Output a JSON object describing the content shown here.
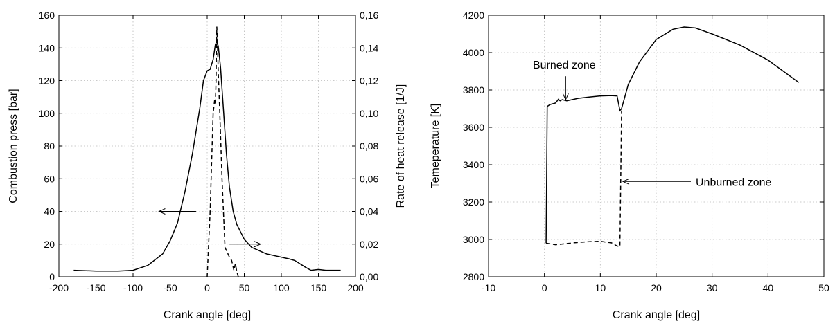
{
  "chart_data": [
    {
      "type": "line",
      "xlabel": "Crank angle [deg]",
      "ylabel": "Combustion press [bar]",
      "y2label": "Rate of heat release [1/J]",
      "xlim": [
        -200,
        200
      ],
      "ylim": [
        0,
        160
      ],
      "y2lim": [
        0,
        0.16
      ],
      "x_ticks": [
        "-200",
        "-150",
        "-100",
        "-50",
        "0",
        "50",
        "100",
        "150",
        "200"
      ],
      "y_ticks": [
        "0",
        "20",
        "40",
        "60",
        "80",
        "100",
        "120",
        "140",
        "160"
      ],
      "y2_ticks": [
        "0,00",
        "0,02",
        "0,04",
        "0,06",
        "0,08",
        "0,10",
        "0,12",
        "0,14",
        "0,16"
      ],
      "grid": true,
      "series": [
        {
          "axis": "left",
          "style": "solid",
          "x": [
            -180,
            -150,
            -120,
            -100,
            -80,
            -60,
            -50,
            -40,
            -30,
            -20,
            -10,
            -5,
            0,
            4,
            8,
            11,
            13,
            15,
            18,
            22,
            26,
            30,
            35,
            40,
            50,
            60,
            70,
            80,
            90,
            100,
            110,
            118,
            125,
            132,
            140,
            150,
            160,
            170,
            180
          ],
          "values": [
            4,
            3.5,
            3.5,
            4,
            7,
            14,
            22,
            33,
            52,
            75,
            103,
            120,
            126,
            127,
            133,
            142,
            144,
            141,
            128,
            102,
            75,
            55,
            40,
            32,
            23,
            18,
            16,
            14,
            13,
            12,
            11,
            10,
            8,
            6,
            4,
            4.5,
            4,
            4,
            4
          ]
        },
        {
          "axis": "right",
          "style": "dashed",
          "x": [
            0,
            2,
            4,
            6,
            8,
            10,
            11,
            12,
            13,
            14,
            15,
            17,
            20,
            24,
            26,
            28,
            30,
            33,
            36,
            38,
            40,
            42
          ],
          "values": [
            0,
            0.02,
            0.04,
            0.07,
            0.1,
            0.108,
            0.106,
            0.12,
            0.153,
            0.14,
            0.125,
            0.1,
            0.06,
            0.018,
            0.016,
            0.014,
            0.012,
            0.01,
            0.004,
            0.008,
            0.003,
            0
          ]
        }
      ],
      "annotations": [
        {
          "kind": "arrow",
          "from": [
            -15,
            40
          ],
          "to": [
            -65,
            40
          ],
          "meaning": "points to left axis"
        },
        {
          "kind": "arrow",
          "from": [
            30,
            0.02
          ],
          "to": [
            72,
            0.02
          ],
          "meaning": "points to right axis"
        }
      ]
    },
    {
      "type": "line",
      "xlabel": "Crank angle [deg]",
      "ylabel": "Temeperature [K]",
      "xlim": [
        -10,
        50
      ],
      "ylim": [
        2800,
        4200
      ],
      "x_ticks": [
        "-10",
        "0",
        "10",
        "20",
        "30",
        "40",
        "50"
      ],
      "y_ticks": [
        "2800",
        "3000",
        "3200",
        "3400",
        "3600",
        "3800",
        "4000",
        "4200"
      ],
      "grid": true,
      "series": [
        {
          "label_text": "Burned zone",
          "style": "solid",
          "x": [
            0.3,
            0.5,
            1,
            2,
            2.5,
            2.8,
            3.2,
            4,
            6,
            8,
            10,
            12,
            13,
            13.5,
            13.8,
            15,
            17,
            20,
            23,
            25,
            27,
            30,
            35,
            40,
            45.5
          ],
          "values": [
            2980,
            3712,
            3722,
            3730,
            3750,
            3742,
            3748,
            3742,
            3755,
            3762,
            3768,
            3770,
            3768,
            3690,
            3700,
            3830,
            3950,
            4070,
            4125,
            4137,
            4132,
            4100,
            4040,
            3960,
            3840
          ]
        },
        {
          "label_text": "Unburned zone",
          "style": "dashed",
          "x": [
            0.3,
            2,
            4,
            6,
            8,
            10,
            12,
            13,
            13.5,
            13.8
          ],
          "values": [
            2980,
            2972,
            2978,
            2984,
            2988,
            2990,
            2982,
            2965,
            2962,
            3690
          ]
        }
      ],
      "annotations": [
        {
          "text": "Burned zone",
          "arrow_to": [
            3.8,
            3740
          ]
        },
        {
          "text": "Unburned zone",
          "arrow_to": [
            13.8,
            3310
          ]
        }
      ]
    }
  ]
}
